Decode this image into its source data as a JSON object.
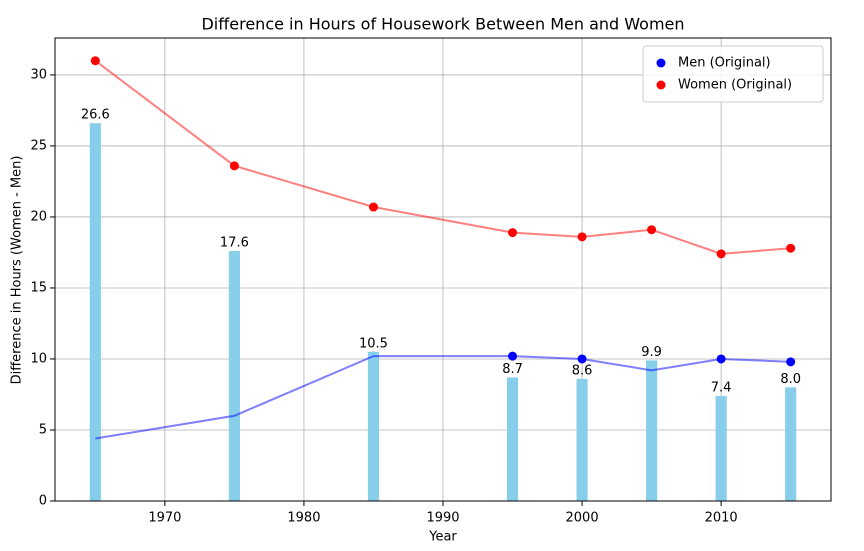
{
  "chart_data": {
    "type": "combo",
    "title": "Difference in Hours of Housework Between Men and Women",
    "x_label": "Year",
    "y_label": "Difference in Hours (Women - Men)",
    "x": [
      1965,
      1975,
      1985,
      1995,
      2000,
      2005,
      2010,
      2015
    ],
    "bars": {
      "color": "#87ceeb",
      "width": 0.8,
      "values": [
        26.6,
        17.6,
        10.5,
        8.7,
        8.6,
        9.9,
        7.4,
        8.0
      ],
      "value_labels": [
        "26.6",
        "17.6",
        "10.5",
        "8.7",
        "8.6",
        "9.9",
        "7.4",
        "8.0"
      ]
    },
    "series": [
      {
        "name": "Men (Original)",
        "color": "#0000ff",
        "values": [
          4.4,
          6.0,
          10.2,
          10.2,
          10.0,
          9.2,
          10.0,
          9.8
        ]
      },
      {
        "name": "Women (Original)",
        "color": "#ff0000",
        "values": [
          31.0,
          23.6,
          20.7,
          18.9,
          18.6,
          19.1,
          17.4,
          17.8
        ]
      }
    ],
    "xlim": [
      1962.1,
      2017.9
    ],
    "ylim": [
      0,
      32.6
    ],
    "xticks": [
      1970,
      1980,
      1990,
      2000,
      2010
    ],
    "yticks": [
      0,
      5,
      10,
      15,
      20,
      25,
      30
    ],
    "grid": true,
    "legend": "upper right"
  }
}
